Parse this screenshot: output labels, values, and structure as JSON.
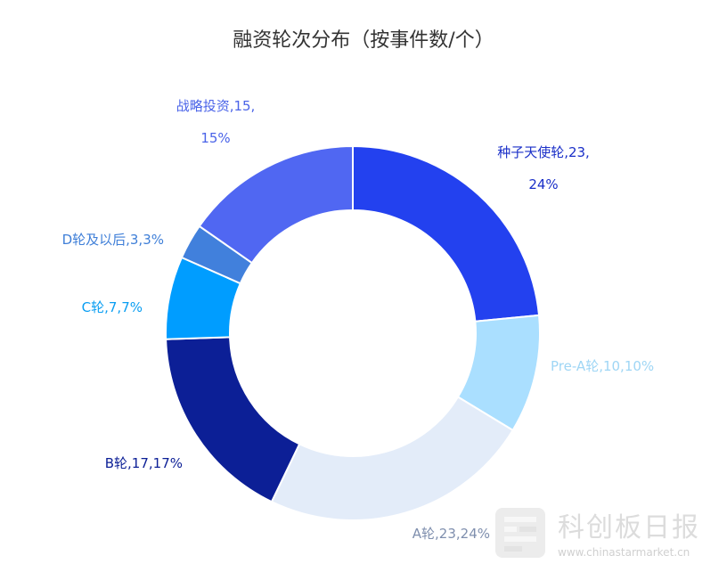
{
  "chart_data": {
    "type": "pie",
    "variant": "donut",
    "title": "融资轮次分布（按事件数/个）",
    "slices": [
      {
        "name": "种子天使轮",
        "value": 23,
        "percent": "24%",
        "label": "种子天使轮,23,",
        "label2": "24%",
        "color": "#2341ef",
        "label_color": "#1a2fc8"
      },
      {
        "name": "Pre-A轮",
        "value": 10,
        "percent": "10%",
        "label": "Pre-A轮,10,10%",
        "label2": "",
        "color": "#aadfff",
        "label_color": "#9fd6f5"
      },
      {
        "name": "A轮",
        "value": 23,
        "percent": "24%",
        "label": "A轮,23,24%",
        "label2": "",
        "color": "#e3ecf9",
        "label_color": "#7f8fae"
      },
      {
        "name": "B轮",
        "value": 17,
        "percent": "17%",
        "label": "B轮,17,17%",
        "label2": "",
        "color": "#0c1f96",
        "label_color": "#0c1f96"
      },
      {
        "name": "C轮",
        "value": 7,
        "percent": "7%",
        "label": "C轮,7,7%",
        "label2": "",
        "color": "#009dff",
        "label_color": "#0a9ef2"
      },
      {
        "name": "D轮及以后",
        "value": 3,
        "percent": "3%",
        "label": "D轮及以后,3,3%",
        "label2": "",
        "color": "#4180dc",
        "label_color": "#3f7fd8"
      },
      {
        "name": "战略投资",
        "value": 15,
        "percent": "15%",
        "label": "战略投资,15,",
        "label2": "15%",
        "color": "#5067f2",
        "label_color": "#4a63e8"
      }
    ]
  },
  "watermark": {
    "text": "科创板日报",
    "url": "www.chinastarmarket.cn"
  }
}
